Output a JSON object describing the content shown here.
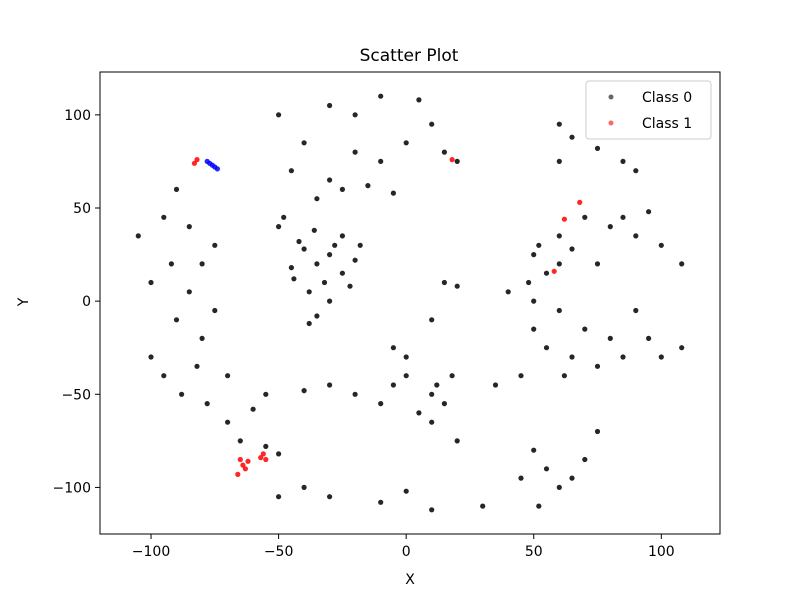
{
  "chart_data": {
    "type": "scatter",
    "title": "Scatter Plot",
    "xlabel": "X",
    "ylabel": "Y",
    "xlim": [
      -120,
      123
    ],
    "ylim": [
      -125,
      123
    ],
    "xticks": [
      -100,
      -50,
      0,
      50,
      100
    ],
    "yticks": [
      -100,
      -50,
      0,
      50,
      100
    ],
    "xtick_labels": [
      "−100",
      "−50",
      "0",
      "50",
      "100"
    ],
    "ytick_labels": [
      "−100",
      "−50",
      "0",
      "50",
      "100"
    ],
    "grid": false,
    "legend_position": "top-right",
    "series": [
      {
        "name": "Class 0",
        "color": "#000000",
        "points": [
          [
            -30,
            25
          ],
          [
            -35,
            20
          ],
          [
            -25,
            15
          ],
          [
            -28,
            30
          ],
          [
            -40,
            28
          ],
          [
            -20,
            22
          ],
          [
            -32,
            10
          ],
          [
            -45,
            18
          ],
          [
            -38,
            5
          ],
          [
            -25,
            35
          ],
          [
            -48,
            45
          ],
          [
            -50,
            40
          ],
          [
            -42,
            32
          ],
          [
            -36,
            38
          ],
          [
            -22,
            8
          ],
          [
            -30,
            0
          ],
          [
            -18,
            30
          ],
          [
            -44,
            12
          ],
          [
            -5,
            -45
          ],
          [
            -20,
            -50
          ],
          [
            -30,
            -45
          ],
          [
            -10,
            -55
          ],
          [
            0,
            -40
          ],
          [
            10,
            -50
          ],
          [
            15,
            -55
          ],
          [
            -40,
            -48
          ],
          [
            -55,
            -50
          ],
          [
            -60,
            -58
          ],
          [
            -70,
            -65
          ],
          [
            -65,
            -75
          ],
          [
            -55,
            -78
          ],
          [
            -50,
            -82
          ],
          [
            5,
            -60
          ],
          [
            12,
            -45
          ],
          [
            18,
            -40
          ],
          [
            0,
            -30
          ],
          [
            -5,
            -25
          ],
          [
            10,
            -65
          ],
          [
            -85,
            5
          ],
          [
            -90,
            -10
          ],
          [
            -80,
            -20
          ],
          [
            -95,
            -40
          ],
          [
            -88,
            -50
          ],
          [
            -100,
            -30
          ],
          [
            -105,
            35
          ],
          [
            -95,
            45
          ],
          [
            -90,
            60
          ],
          [
            -85,
            40
          ],
          [
            -80,
            20
          ],
          [
            -75,
            30
          ],
          [
            -78,
            -55
          ],
          [
            -82,
            -35
          ],
          [
            -70,
            -40
          ],
          [
            -75,
            -5
          ],
          [
            -92,
            20
          ],
          [
            -100,
            10
          ],
          [
            -50,
            100
          ],
          [
            -30,
            105
          ],
          [
            -20,
            100
          ],
          [
            -10,
            110
          ],
          [
            5,
            108
          ],
          [
            10,
            95
          ],
          [
            0,
            85
          ],
          [
            -10,
            75
          ],
          [
            -30,
            65
          ],
          [
            -35,
            55
          ],
          [
            -25,
            60
          ],
          [
            -15,
            62
          ],
          [
            -5,
            58
          ],
          [
            -40,
            85
          ],
          [
            15,
            80
          ],
          [
            20,
            75
          ],
          [
            -45,
            70
          ],
          [
            -20,
            80
          ],
          [
            50,
            25
          ],
          [
            60,
            35
          ],
          [
            70,
            45
          ],
          [
            55,
            15
          ],
          [
            65,
            28
          ],
          [
            80,
            40
          ],
          [
            90,
            35
          ],
          [
            100,
            30
          ],
          [
            108,
            20
          ],
          [
            75,
            20
          ],
          [
            85,
            45
          ],
          [
            95,
            48
          ],
          [
            60,
            20
          ],
          [
            52,
            30
          ],
          [
            40,
            5
          ],
          [
            50,
            0
          ],
          [
            60,
            -5
          ],
          [
            70,
            -15
          ],
          [
            80,
            -20
          ],
          [
            55,
            -25
          ],
          [
            65,
            -30
          ],
          [
            75,
            -35
          ],
          [
            45,
            -40
          ],
          [
            35,
            -45
          ],
          [
            90,
            -5
          ],
          [
            95,
            -20
          ],
          [
            100,
            -30
          ],
          [
            108,
            -25
          ],
          [
            85,
            -30
          ],
          [
            50,
            -15
          ],
          [
            62,
            -40
          ],
          [
            48,
            10
          ],
          [
            60,
            95
          ],
          [
            65,
            88
          ],
          [
            75,
            82
          ],
          [
            90,
            70
          ],
          [
            85,
            75
          ],
          [
            60,
            75
          ],
          [
            50,
            -80
          ],
          [
            55,
            -90
          ],
          [
            45,
            -95
          ],
          [
            60,
            -100
          ],
          [
            70,
            -85
          ],
          [
            75,
            -70
          ],
          [
            52,
            -110
          ],
          [
            65,
            -95
          ],
          [
            -30,
            -105
          ],
          [
            -10,
            -108
          ],
          [
            0,
            -102
          ],
          [
            10,
            -112
          ],
          [
            -40,
            -100
          ],
          [
            -50,
            -105
          ],
          [
            20,
            -75
          ],
          [
            30,
            -110
          ],
          [
            10,
            -10
          ],
          [
            20,
            8
          ],
          [
            15,
            10
          ],
          [
            -35,
            -8
          ],
          [
            -38,
            -12
          ]
        ]
      },
      {
        "name": "Class 1",
        "color": "#ff0000",
        "points": [
          [
            -82,
            76
          ],
          [
            -83,
            74
          ],
          [
            -65,
            -85
          ],
          [
            -64,
            -88
          ],
          [
            -63,
            -90
          ],
          [
            -66,
            -93
          ],
          [
            -62,
            -86
          ],
          [
            -57,
            -84
          ],
          [
            -56,
            -82
          ],
          [
            -55,
            -85
          ],
          [
            18,
            76
          ],
          [
            68,
            53
          ],
          [
            62,
            44
          ],
          [
            58,
            16
          ]
        ]
      },
      {
        "name": "",
        "color": "#0000ff",
        "points": [
          [
            -77,
            74
          ],
          [
            -76,
            73
          ],
          [
            -75,
            72
          ],
          [
            -78,
            75
          ],
          [
            -74,
            71
          ]
        ]
      }
    ]
  }
}
